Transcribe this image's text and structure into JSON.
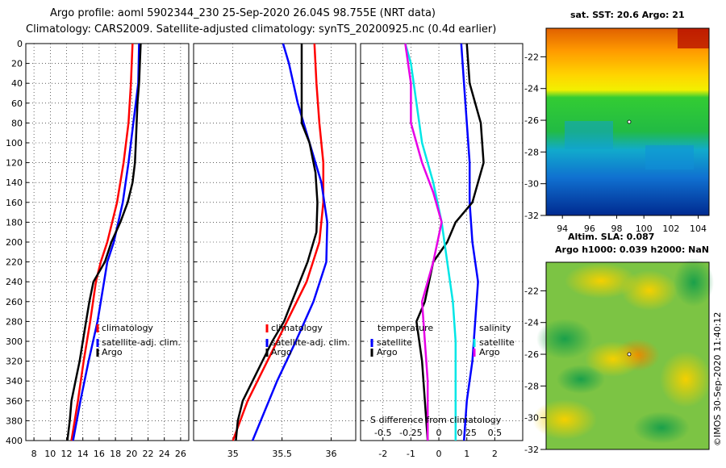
{
  "title": {
    "line1": "Argo profile: aoml 5902344_230 25-Sep-2020 26.04S 98.755E (NRT data)",
    "line2": "Climatology: CARS2009. Satellite-adjusted climatology: synTS_20200925.nc (0.4d earlier)"
  },
  "depth_axis": {
    "label_values": [
      0,
      20,
      40,
      60,
      80,
      100,
      120,
      140,
      160,
      180,
      200,
      220,
      240,
      260,
      280,
      300,
      320,
      340,
      360,
      380,
      400
    ]
  },
  "colors": {
    "climatology": "#ff0000",
    "satellite": "#0000ff",
    "argo": "#000000",
    "salinity_diff": "#00e6e6",
    "temperature_diff": "#e600e6"
  },
  "chart_data": [
    {
      "type": "line",
      "name": "temperature",
      "xlabel": "",
      "ylabel": "depth",
      "xlim": [
        7,
        27
      ],
      "ylim": [
        0,
        400
      ],
      "xticks": [
        8,
        10,
        12,
        14,
        16,
        18,
        20,
        22,
        24,
        26
      ],
      "legend": {
        "climatology": "climatology",
        "satellite": "satellite-adj. clim.",
        "argo": "Argo"
      },
      "series": [
        {
          "name": "climatology",
          "depth": [
            0,
            40,
            80,
            120,
            160,
            200,
            220,
            240,
            280,
            320,
            360,
            400
          ],
          "values": [
            20.1,
            19.9,
            19.6,
            19.0,
            18.2,
            17.0,
            16.2,
            15.6,
            14.9,
            14.1,
            13.4,
            12.6
          ]
        },
        {
          "name": "satellite-adj. clim.",
          "depth": [
            0,
            40,
            80,
            120,
            160,
            200,
            220,
            240,
            280,
            320,
            360,
            400
          ],
          "values": [
            20.9,
            20.8,
            20.2,
            19.6,
            18.9,
            17.8,
            17.0,
            16.6,
            15.8,
            14.7,
            13.7,
            12.8
          ]
        },
        {
          "name": "Argo",
          "depth": [
            0,
            20,
            40,
            60,
            80,
            100,
            120,
            140,
            160,
            180,
            200,
            220,
            240,
            260,
            280,
            300,
            320,
            340,
            360,
            380,
            400
          ],
          "values": [
            21.1,
            21.0,
            20.9,
            20.7,
            20.6,
            20.5,
            20.4,
            20.1,
            19.5,
            18.6,
            17.5,
            16.7,
            15.3,
            14.8,
            14.4,
            14.0,
            13.6,
            13.1,
            12.6,
            12.4,
            12.1
          ]
        }
      ]
    },
    {
      "type": "line",
      "name": "salinity",
      "xlabel": "",
      "ylabel": "depth",
      "xlim": [
        34.6,
        36.25
      ],
      "xticks": [
        35,
        35.5,
        36
      ],
      "xtick_labels": [
        "35",
        "35.5",
        "36"
      ],
      "legend": {
        "climatology": "climatology",
        "satellite": "satellite-adj. clim.",
        "argo": "Argo"
      },
      "series": [
        {
          "name": "climatology",
          "depth": [
            0,
            40,
            80,
            120,
            160,
            200,
            240,
            280,
            320,
            360,
            400
          ],
          "values": [
            35.83,
            35.85,
            35.88,
            35.92,
            35.92,
            35.88,
            35.75,
            35.55,
            35.35,
            35.15,
            35.0
          ]
        },
        {
          "name": "satellite-adj. clim.",
          "depth": [
            0,
            20,
            60,
            100,
            140,
            180,
            220,
            260,
            300,
            340,
            400
          ],
          "values": [
            35.51,
            35.57,
            35.66,
            35.78,
            35.9,
            35.96,
            35.95,
            35.82,
            35.64,
            35.45,
            35.2
          ]
        },
        {
          "name": "Argo",
          "depth": [
            0,
            40,
            80,
            100,
            130,
            160,
            190,
            200,
            220,
            240,
            260,
            280,
            300,
            320,
            340,
            360,
            380,
            400
          ],
          "values": [
            35.7,
            35.7,
            35.7,
            35.78,
            35.84,
            35.86,
            35.85,
            35.82,
            35.76,
            35.68,
            35.6,
            35.52,
            35.4,
            35.3,
            35.2,
            35.1,
            35.05,
            35.03
          ]
        }
      ]
    },
    {
      "type": "line",
      "name": "difference",
      "xlabel": "S difference from climatology",
      "xlim": [
        -2.8,
        3.0
      ],
      "xticks": [
        -2,
        -1,
        0,
        1,
        2
      ],
      "xtick_labels": [
        "-2",
        "-1",
        "0",
        "1",
        "2"
      ],
      "top_ticks": [
        -0.5,
        -0.25,
        0,
        0.25,
        0.5
      ],
      "top_tick_labels": [
        "-0.5",
        "-0.25",
        "0",
        "0.25",
        "0.5"
      ],
      "legend": {
        "temperature": "temperature",
        "salinity": "salinity",
        "satellite": "satellite",
        "argo": "Argo"
      },
      "series": [
        {
          "name": "temperature satellite",
          "depth": [
            0,
            40,
            80,
            120,
            160,
            200,
            240,
            280,
            320,
            360,
            400
          ],
          "values": [
            0.8,
            0.9,
            1.0,
            1.1,
            1.1,
            1.2,
            1.4,
            1.3,
            1.2,
            1.0,
            0.9
          ]
        },
        {
          "name": "temperature Argo",
          "depth": [
            0,
            40,
            80,
            120,
            160,
            180,
            200,
            220,
            260,
            280,
            320,
            360,
            400
          ],
          "values": [
            1.0,
            1.1,
            1.5,
            1.6,
            1.2,
            0.6,
            0.3,
            -0.2,
            -0.5,
            -0.8,
            -0.6,
            -0.5,
            -0.4
          ]
        },
        {
          "name": "salinity satellite",
          "depth": [
            0,
            20,
            60,
            100,
            140,
            180,
            220,
            260,
            300,
            340,
            400
          ],
          "values": [
            -1.2,
            -1.0,
            -0.8,
            -0.6,
            -0.2,
            0.1,
            0.3,
            0.5,
            0.6,
            0.6,
            0.6
          ]
        },
        {
          "name": "salinity Argo",
          "depth": [
            0,
            40,
            80,
            120,
            150,
            180,
            220,
            260,
            300,
            340,
            380,
            400
          ],
          "values": [
            -1.2,
            -1.0,
            -1.0,
            -0.6,
            -0.2,
            0.1,
            -0.2,
            -0.6,
            -0.5,
            -0.4,
            -0.4,
            -0.4
          ]
        }
      ]
    }
  ],
  "maps": {
    "sst": {
      "title": "sat. SST: 20.6 Argo: 21",
      "yticks": [
        -22,
        -24,
        -26,
        -28,
        -30,
        -32
      ],
      "xticks": [
        94,
        96,
        98,
        100,
        102,
        104
      ],
      "ylim": [
        -32,
        -20.2
      ],
      "xlim": [
        92.8,
        104.8
      ]
    },
    "sla": {
      "title_line1": "Altim. SLA: 0.087",
      "title_line2": "Argo h1000: 0.039 h2000: NaN",
      "yticks": [
        -22,
        -24,
        -26,
        -28,
        -30,
        -32
      ],
      "ylim": [
        -32,
        -20.2
      ]
    }
  },
  "credit": "©IMOS 30-Sep-2020 11:40:12"
}
